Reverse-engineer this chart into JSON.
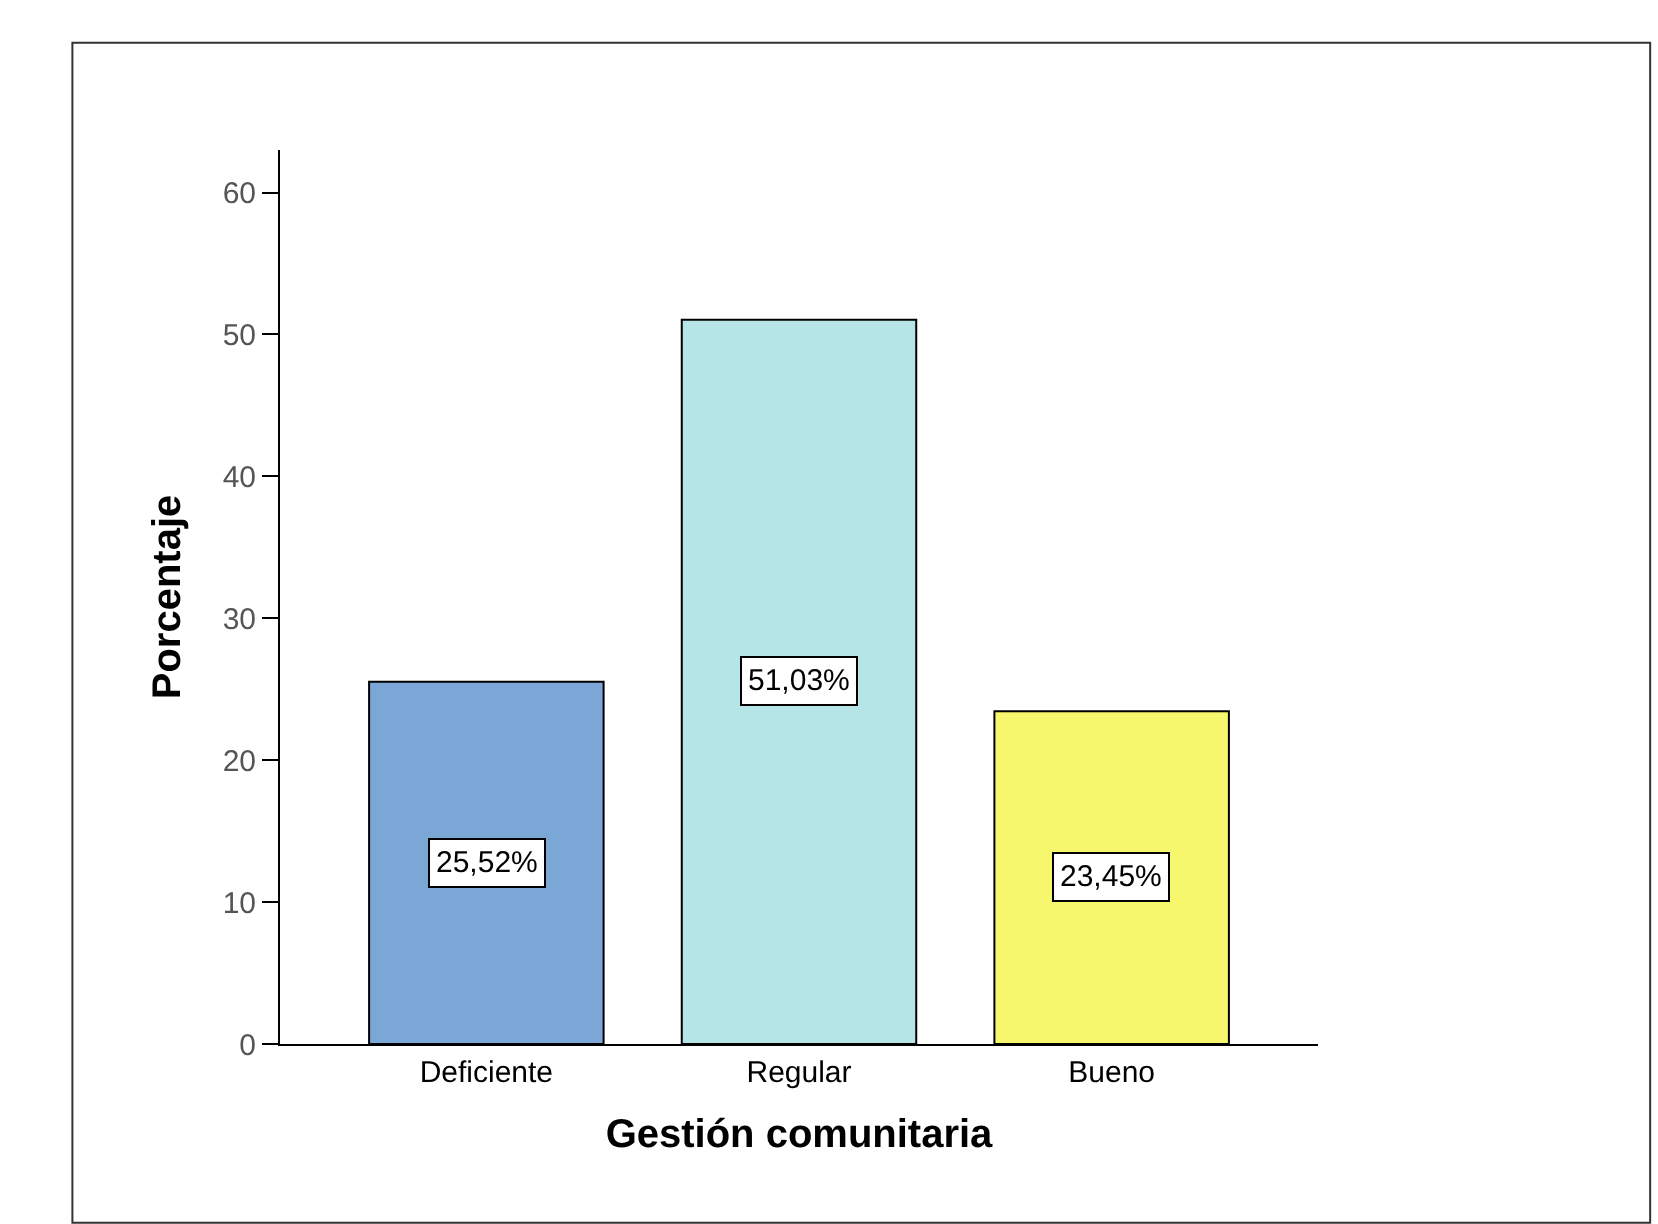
{
  "chart_data": {
    "type": "bar",
    "xlabel": "Gestión comunitaria",
    "ylabel": "Porcentaje",
    "categories": [
      "Deficiente",
      "Regular",
      "Bueno"
    ],
    "values": [
      25.52,
      51.03,
      23.45
    ],
    "colors": [
      "#7ba7d6",
      "#b5e5e6",
      "#f7f76e"
    ],
    "value_labels": [
      "25,52%",
      "51,03%",
      "23,45%"
    ],
    "ylim": [
      0,
      63
    ],
    "yticks": [
      0,
      10,
      20,
      30,
      40,
      50,
      60
    ]
  }
}
